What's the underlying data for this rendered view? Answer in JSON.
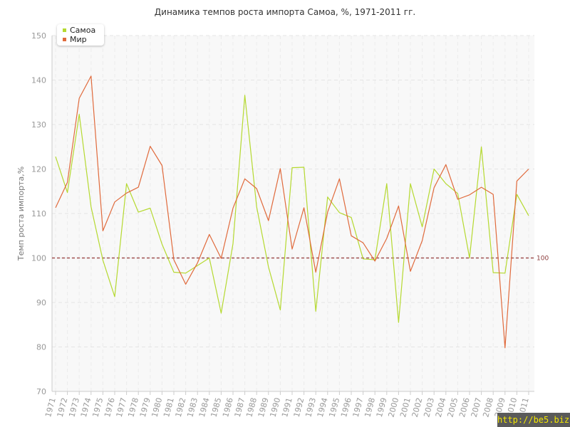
{
  "chart_data": {
    "type": "line",
    "title": "Динамика темпов роста импорта Самоа, %, 1971-2011 гг.",
    "xlabel": "",
    "ylabel": "Темп роста импорта,%",
    "ylim": [
      70,
      150
    ],
    "yticks": [
      70,
      80,
      90,
      100,
      110,
      120,
      130,
      140,
      150
    ],
    "grid": true,
    "legend_position": "top-left",
    "reference_line": {
      "value": 100,
      "label": "100",
      "color": "#a05050"
    },
    "x": [
      "1971",
      "1972",
      "1973",
      "1974",
      "1975",
      "1976",
      "1977",
      "1978",
      "1979",
      "1980",
      "1981",
      "1982",
      "1983",
      "1984",
      "1985",
      "1986",
      "1987",
      "1988",
      "1989",
      "1990",
      "1991",
      "1992",
      "1993",
      "1994",
      "1995",
      "1996",
      "1997",
      "1998",
      "1999",
      "2000",
      "2001",
      "2002",
      "2003",
      "2004",
      "2005",
      "2006",
      "2007",
      "2008",
      "2009",
      "2010",
      "2011"
    ],
    "series": [
      {
        "name": "Самоа",
        "color": "#b5d930",
        "values": [
          122.8,
          114.7,
          132.3,
          111.5,
          99.5,
          91.3,
          116.7,
          110.3,
          111.2,
          103.1,
          96.8,
          96.6,
          98.3,
          100.0,
          87.6,
          103.2,
          136.6,
          111.5,
          98.0,
          88.3,
          120.3,
          120.4,
          88.0,
          113.7,
          110.2,
          109.1,
          99.8,
          99.6,
          116.7,
          85.5,
          116.7,
          107.0,
          120.0,
          116.7,
          114.5,
          100.0,
          125.0,
          96.7,
          96.6,
          114.3,
          109.5
        ]
      },
      {
        "name": "Мир",
        "color": "#e06a3c",
        "values": [
          111.3,
          117.0,
          135.9,
          140.9,
          106.1,
          112.6,
          114.6,
          115.9,
          125.1,
          120.8,
          99.6,
          94.1,
          98.9,
          105.3,
          99.9,
          111.2,
          117.8,
          115.6,
          108.4,
          120.1,
          102.0,
          111.3,
          96.8,
          110.3,
          117.8,
          105.0,
          103.4,
          99.3,
          104.4,
          111.7,
          97.0,
          103.9,
          115.8,
          121.0,
          113.2,
          114.2,
          115.9,
          114.3,
          79.8,
          117.3,
          120.0
        ]
      }
    ]
  },
  "watermark": "http://be5.biz/"
}
